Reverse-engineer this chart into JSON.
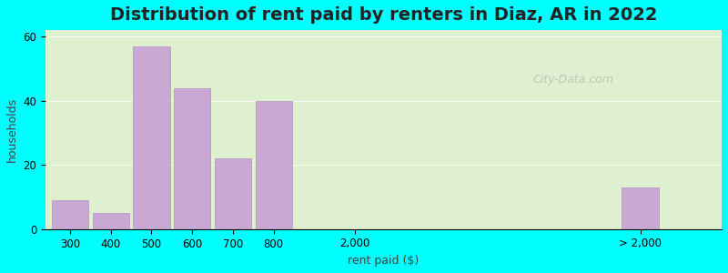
{
  "title": "Distribution of rent paid by renters in Diaz, AR in 2022",
  "xlabel": "rent paid ($)",
  "ylabel": "households",
  "background_color": "#00FFFF",
  "plot_bg_gradient_top": "#e8f5e8",
  "plot_bg_gradient_bottom": "#f0f5e0",
  "bar_color": "#c9a8d4",
  "bar_edge_color": "#b090c0",
  "yticks": [
    0,
    20,
    40,
    60
  ],
  "ylim": [
    0,
    62
  ],
  "bars": [
    {
      "label": "300",
      "value": 9
    },
    {
      "label": "400",
      "value": 5
    },
    {
      "label": "500",
      "value": 57
    },
    {
      "label": "600",
      "value": 44
    },
    {
      "label": "700",
      "value": 22
    },
    {
      "label": "800",
      "value": 40
    },
    {
      "label": "2,000",
      "value": 0
    },
    {
      "label": "> 2,000",
      "value": 13
    }
  ],
  "title_fontsize": 14,
  "axis_label_fontsize": 9,
  "tick_fontsize": 8.5,
  "watermark_text": "City-Data.com"
}
